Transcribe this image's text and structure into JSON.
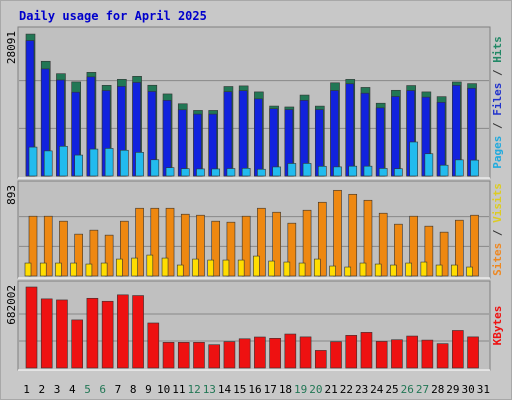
{
  "chart_data": {
    "type": "bar",
    "title": "Daily usage for April 2025",
    "categories": [
      "1",
      "2",
      "3",
      "4",
      "5",
      "6",
      "7",
      "8",
      "9",
      "10",
      "11",
      "12",
      "13",
      "14",
      "15",
      "16",
      "17",
      "18",
      "19",
      "20",
      "21",
      "22",
      "23",
      "24",
      "25",
      "26",
      "27",
      "28",
      "29",
      "30",
      "31"
    ],
    "weekend_days": [
      5,
      6,
      12,
      13,
      19,
      20,
      26,
      27
    ],
    "panels": [
      {
        "name": "pages-files-hits",
        "ymax_label": "28091",
        "ymax": 28091,
        "side_label": [
          {
            "text": "Pages",
            "color": "#22aadd"
          },
          {
            "text": " / ",
            "color": "#333333"
          },
          {
            "text": "Files",
            "color": "#2233cc"
          },
          {
            "text": " / ",
            "color": "#333333"
          },
          {
            "text": "Hits",
            "color": "#228866"
          }
        ],
        "series": [
          {
            "name": "Hits",
            "color": "#227755",
            "values": [
              27880,
              22540,
              20100,
              18480,
              20360,
              17810,
              18990,
              19580,
              17830,
              16120,
              14190,
              12880,
              12880,
              17580,
              17700,
              16520,
              13740,
              13560,
              15900,
              13730,
              18310,
              18980,
              17400,
              14300,
              16840,
              17770,
              16520,
              15590,
              18470,
              18150,
              null
            ]
          },
          {
            "name": "Files",
            "color": "#1122dd",
            "values": [
              26610,
              21040,
              18860,
              16460,
              19470,
              16790,
              17620,
              18380,
              16610,
              14860,
              13010,
              12160,
              12160,
              16560,
              16760,
              15160,
              13220,
              13050,
              14860,
              13050,
              16790,
              18120,
              16270,
              13380,
              15620,
              16790,
              15500,
              14480,
              17820,
              17240,
              null
            ]
          },
          {
            "name": "Pages",
            "color": "#22bbee",
            "values": [
              5680,
              4930,
              5840,
              4110,
              5290,
              5420,
              5060,
              4640,
              3190,
              1640,
              1450,
              1390,
              1390,
              1470,
              1510,
              1330,
              1780,
              2460,
              2470,
              1910,
              1790,
              1930,
              1930,
              1490,
              1430,
              6680,
              4370,
              2120,
              3170,
              3120,
              null
            ]
          }
        ]
      },
      {
        "name": "visits-sites",
        "ymax_label": "893",
        "ymax": 893,
        "side_label": [
          {
            "text": "Sites",
            "color": "#ee8822"
          },
          {
            "text": " / ",
            "color": "#333333"
          },
          {
            "text": "Visits",
            "color": "#ddcc22"
          }
        ],
        "series": [
          {
            "name": "Visits",
            "color": "#ee8811",
            "values": [
              600,
              600,
              550,
              420,
              460,
              410,
              550,
              680,
              680,
              680,
              620,
              610,
              550,
              540,
              600,
              680,
              640,
              530,
              660,
              740,
              860,
              820,
              760,
              630,
              520,
              600,
              500,
              440,
              560,
              610,
              null
            ]
          },
          {
            "name": "Sites",
            "color": "#ffdd00",
            "values": [
              130,
              130,
              130,
              130,
              120,
              130,
              170,
              180,
              210,
              180,
              110,
              170,
              160,
              160,
              160,
              200,
              150,
              140,
              130,
              170,
              100,
              90,
              130,
              120,
              110,
              130,
              140,
              110,
              110,
              90,
              null
            ]
          }
        ]
      },
      {
        "name": "kbytes",
        "ymax_label": "682002",
        "ymax": 682002,
        "side_label": [
          {
            "text": "KBytes",
            "color": "#ee1111"
          }
        ],
        "series": [
          {
            "name": "KBytes",
            "color": "#ee1111",
            "values": [
              682000,
              582000,
              573000,
              405000,
              587000,
              562000,
              616000,
              610000,
              379000,
              216000,
              216000,
              216000,
              196000,
              222000,
              246000,
              261000,
              250000,
              286000,
              262000,
              148000,
              221000,
              275000,
              300000,
              224000,
              238000,
              269000,
              235000,
              205000,
              316000,
              262000,
              null
            ]
          }
        ]
      }
    ]
  }
}
